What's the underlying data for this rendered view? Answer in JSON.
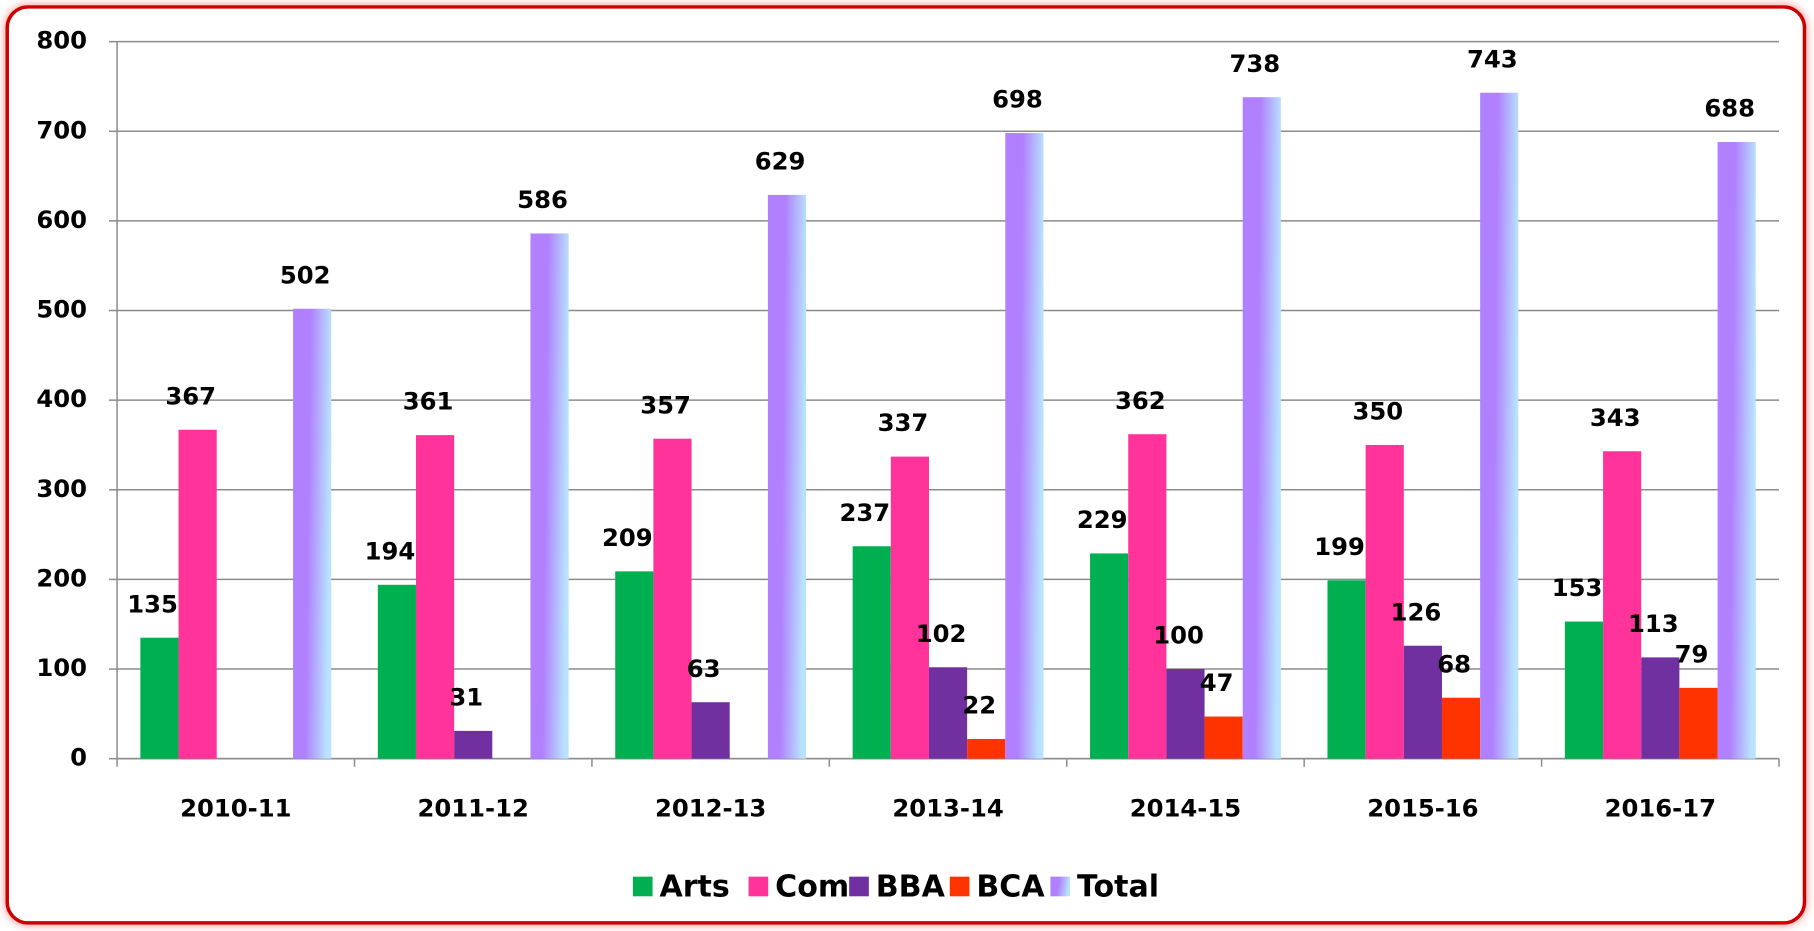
{
  "chart_data": {
    "type": "bar",
    "categories": [
      "2010-11",
      "2011-12",
      "2012-13",
      "2013-14",
      "2014-15",
      "2015-16",
      "2016-17"
    ],
    "series": [
      {
        "name": "Arts",
        "color": "#00b050",
        "values": [
          135,
          194,
          209,
          237,
          229,
          199,
          153
        ]
      },
      {
        "name": "Com",
        "color": "#ff3399",
        "values": [
          367,
          361,
          357,
          337,
          362,
          350,
          343
        ]
      },
      {
        "name": "BBA",
        "color": "#7030a0",
        "values": [
          null,
          31,
          63,
          102,
          100,
          126,
          113
        ]
      },
      {
        "name": "BCA",
        "color": "#ff3300",
        "values": [
          null,
          null,
          null,
          22,
          47,
          68,
          79
        ]
      },
      {
        "name": "Total",
        "color": "#b080ff",
        "values": [
          502,
          586,
          629,
          698,
          738,
          743,
          688
        ]
      }
    ],
    "ylim": [
      0,
      800
    ],
    "yticks": [
      0,
      100,
      200,
      300,
      400,
      500,
      600,
      700,
      800
    ],
    "grid": true,
    "legend": "bottom"
  }
}
